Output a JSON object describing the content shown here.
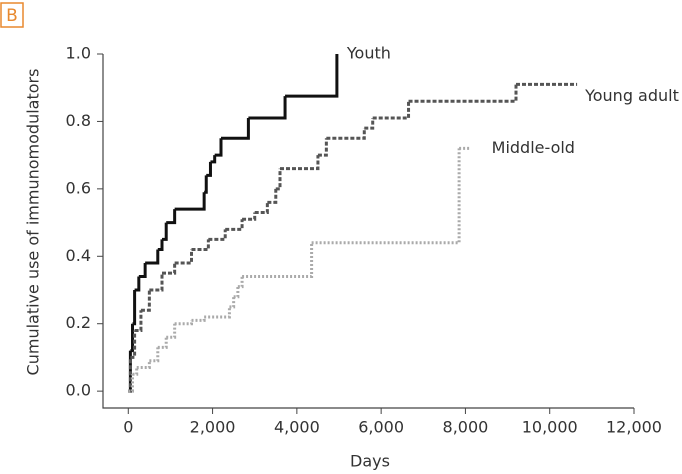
{
  "panel_label": "B",
  "chart_data": {
    "type": "step",
    "xlabel": "Days",
    "ylabel": "Cumulative use of immunomodulators",
    "xlim": [
      -600,
      12000
    ],
    "ylim": [
      -0.05,
      1.0
    ],
    "xticks": [
      0,
      {
        "value": 2000,
        "label": "2,000"
      },
      {
        "value": 4000,
        "label": "4,000"
      },
      {
        "value": 6000,
        "label": "6,000"
      },
      {
        "value": 8000,
        "label": "8,000"
      },
      {
        "value": 10000,
        "label": "10,000"
      },
      {
        "value": 12000,
        "label": "12,000"
      }
    ],
    "yticks": [
      {
        "value": 0,
        "label": "0.0"
      },
      {
        "value": 0.2,
        "label": "0.2"
      },
      {
        "value": 0.4,
        "label": "0.4"
      },
      {
        "value": 0.6,
        "label": "0.6"
      },
      {
        "value": 0.8,
        "label": "0.8"
      },
      {
        "value": 1,
        "label": "1.0"
      }
    ],
    "series": [
      {
        "name": "Youth",
        "color": "#111111",
        "dash": "solid",
        "x": [
          0,
          50,
          100,
          150,
          250,
          400,
          700,
          800,
          900,
          1100,
          1800,
          1850,
          1950,
          2050,
          2200,
          2850,
          3720,
          4950
        ],
        "values": [
          0,
          0.12,
          0.2,
          0.3,
          0.34,
          0.38,
          0.42,
          0.45,
          0.5,
          0.54,
          0.59,
          0.64,
          0.68,
          0.7,
          0.75,
          0.81,
          0.875,
          1.0
        ]
      },
      {
        "name": "Young adult",
        "color": "#555555",
        "dash": "dashed",
        "x": [
          0,
          50,
          150,
          300,
          500,
          800,
          1100,
          1500,
          1900,
          2300,
          2700,
          3000,
          3300,
          3500,
          3600,
          4500,
          4700,
          5600,
          5800,
          6650,
          9200,
          10650
        ],
        "values": [
          0,
          0.1,
          0.18,
          0.24,
          0.3,
          0.35,
          0.38,
          0.42,
          0.45,
          0.48,
          0.51,
          0.53,
          0.56,
          0.6,
          0.66,
          0.7,
          0.75,
          0.78,
          0.81,
          0.86,
          0.91,
          0.91
        ]
      },
      {
        "name": "Middle-old",
        "color": "#aaaaaa",
        "dash": "dotted",
        "x": [
          0,
          100,
          200,
          500,
          700,
          900,
          1100,
          1500,
          1800,
          2400,
          2500,
          2600,
          2700,
          4350,
          7850,
          8100
        ],
        "values": [
          0,
          0.05,
          0.07,
          0.09,
          0.13,
          0.16,
          0.2,
          0.21,
          0.22,
          0.25,
          0.28,
          0.31,
          0.34,
          0.44,
          0.72,
          0.72
        ]
      }
    ]
  }
}
